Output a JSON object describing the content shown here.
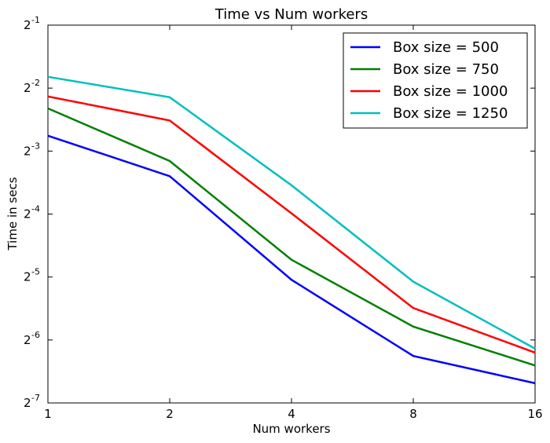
{
  "chart_data": {
    "type": "line",
    "title": "Time vs Num workers",
    "xlabel": "Num workers",
    "ylabel": "Time in secs",
    "x": [
      1,
      2,
      4,
      8,
      16
    ],
    "x_scale": "log2",
    "y_scale": "log2",
    "xlim": [
      1,
      16
    ],
    "ylim_exponents": [
      -7,
      -1
    ],
    "x_tick_labels": [
      "1",
      "2",
      "4",
      "8",
      "16"
    ],
    "y_ticks": [
      {
        "base": "2",
        "exp": "-1",
        "value": 0.5
      },
      {
        "base": "2",
        "exp": "-2",
        "value": 0.25
      },
      {
        "base": "2",
        "exp": "-3",
        "value": 0.125
      },
      {
        "base": "2",
        "exp": "-4",
        "value": 0.0625
      },
      {
        "base": "2",
        "exp": "-5",
        "value": 0.03125
      },
      {
        "base": "2",
        "exp": "-6",
        "value": 0.015625
      },
      {
        "base": "2",
        "exp": "-7",
        "value": 0.0078125
      }
    ],
    "grid": false,
    "legend_position": "top-right",
    "series": [
      {
        "name": "Box size = 500",
        "color": "#0000ff",
        "values": [
          0.148,
          0.0948,
          0.0303,
          0.0131,
          0.00971
        ]
      },
      {
        "name": "Box size = 750",
        "color": "#008000",
        "values": [
          0.2,
          0.112,
          0.0378,
          0.0181,
          0.0118
        ]
      },
      {
        "name": "Box size = 1000",
        "color": "#ff0000",
        "values": [
          0.228,
          0.175,
          0.063,
          0.0222,
          0.0136
        ]
      },
      {
        "name": "Box size = 1250",
        "color": "#00bfbf",
        "values": [
          0.283,
          0.226,
          0.0858,
          0.0297,
          0.0142
        ]
      }
    ]
  }
}
